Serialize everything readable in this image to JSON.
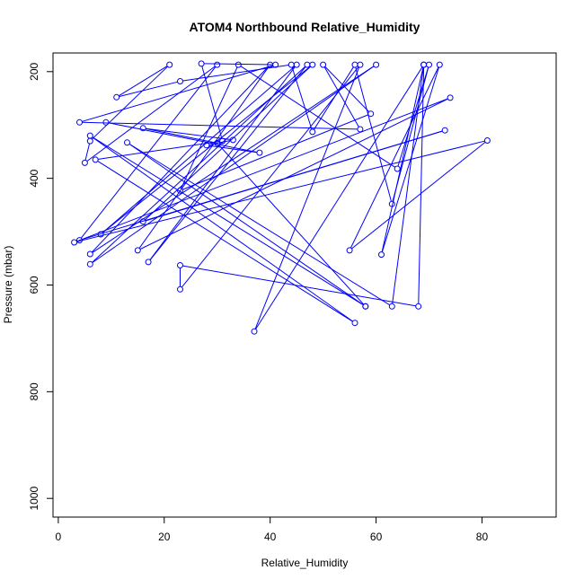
{
  "chart_data": {
    "type": "line",
    "title": "ATOM4 Northbound Relative_Humidity",
    "xlabel": "Relative_Humidity",
    "ylabel": "Pressure (mbar)",
    "xlim": [
      -1,
      94
    ],
    "ylim": [
      1035,
      165
    ],
    "y_inverted": true,
    "grid": false,
    "legend": "none",
    "line_color": "#0000ff",
    "marker": "open-circle",
    "x_ticks": [
      0,
      20,
      40,
      60,
      80
    ],
    "y_ticks": [
      200,
      400,
      600,
      800,
      1000
    ],
    "series": [
      {
        "points": [
          {
            "x": 9,
            "y": 295
          },
          {
            "x": 38,
            "y": 352
          },
          {
            "x": 28,
            "y": 338
          },
          {
            "x": 33,
            "y": 328
          },
          {
            "x": 16,
            "y": 306
          },
          {
            "x": 30,
            "y": 334
          },
          {
            "x": 58,
            "y": 640
          },
          {
            "x": 13,
            "y": 333
          },
          {
            "x": 63,
            "y": 640
          },
          {
            "x": 69,
            "y": 187
          },
          {
            "x": 68,
            "y": 640
          },
          {
            "x": 23,
            "y": 563
          },
          {
            "x": 23,
            "y": 608
          },
          {
            "x": 57,
            "y": 187
          },
          {
            "x": 37,
            "y": 687
          },
          {
            "x": 69,
            "y": 187
          },
          {
            "x": 61,
            "y": 543
          },
          {
            "x": 72,
            "y": 187
          },
          {
            "x": 55,
            "y": 535
          },
          {
            "x": 81,
            "y": 329
          },
          {
            "x": 3,
            "y": 520
          },
          {
            "x": 74,
            "y": 249
          },
          {
            "x": 15,
            "y": 535
          },
          {
            "x": 40,
            "y": 187
          },
          {
            "x": 6,
            "y": 542
          },
          {
            "x": 60,
            "y": 187
          },
          {
            "x": 6,
            "y": 561
          },
          {
            "x": 47,
            "y": 187
          },
          {
            "x": 17,
            "y": 557
          },
          {
            "x": 45,
            "y": 187
          },
          {
            "x": 8,
            "y": 505
          },
          {
            "x": 48,
            "y": 187
          },
          {
            "x": 16,
            "y": 481
          },
          {
            "x": 73,
            "y": 310
          },
          {
            "x": 4,
            "y": 516
          },
          {
            "x": 30,
            "y": 187
          },
          {
            "x": 5,
            "y": 371
          },
          {
            "x": 6,
            "y": 330
          },
          {
            "x": 21,
            "y": 187
          },
          {
            "x": 11,
            "y": 248
          },
          {
            "x": 23,
            "y": 218
          },
          {
            "x": 44,
            "y": 187
          },
          {
            "x": 48,
            "y": 313
          },
          {
            "x": 56,
            "y": 187
          },
          {
            "x": 63,
            "y": 448
          },
          {
            "x": 70,
            "y": 187
          },
          {
            "x": 64,
            "y": 382
          },
          {
            "x": 34,
            "y": 187
          },
          {
            "x": 23,
            "y": 423
          },
          {
            "x": 59,
            "y": 279
          },
          {
            "x": 50,
            "y": 187
          },
          {
            "x": 57,
            "y": 308
          },
          {
            "x": 4,
            "y": 295
          },
          {
            "x": 41,
            "y": 187
          },
          {
            "x": 27,
            "y": 185
          },
          {
            "x": 31,
            "y": 330
          },
          {
            "x": 7,
            "y": 365
          },
          {
            "x": 56,
            "y": 671
          },
          {
            "x": 6,
            "y": 320
          },
          {
            "x": 58,
            "y": 640
          }
        ]
      }
    ]
  }
}
